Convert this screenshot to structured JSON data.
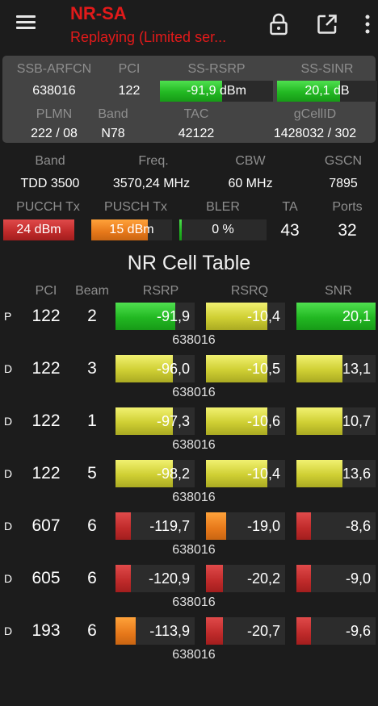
{
  "header": {
    "title": "NR-SA",
    "subtitle": "Replaying (Limited ser..."
  },
  "colors": {
    "accent_red": "#e21a1a",
    "good": "#22b822",
    "fair": "#cfcf33",
    "warn": "#e6781a",
    "bad": "#bf2a2a"
  },
  "toolbar": {
    "icons": [
      "menu-icon",
      "lock-icon",
      "open-external-icon",
      "more-vert-icon"
    ]
  },
  "ssb": {
    "arfcn_label": "SSB-ARFCN",
    "arfcn": "638016",
    "pci_label": "PCI",
    "pci": "122",
    "rsrp_label": "SS-RSRP",
    "rsrp": "-91,9 dBm",
    "rsrp_level": 0.55,
    "sinr_label": "SS-SINR",
    "sinr": "20,1 dB",
    "sinr_level": 0.63,
    "plmn_label": "PLMN",
    "plmn": "222 / 08",
    "band_label": "Band",
    "band": "N78",
    "tac_label": "TAC",
    "tac": "42122",
    "gcellid_label": "gCellID",
    "gcellid": "1428032 / 302"
  },
  "carrier": {
    "band_label": "Band",
    "band": "TDD 3500",
    "freq_label": "Freq.",
    "freq": "3570,24 MHz",
    "cbw_label": "CBW",
    "cbw": "60 MHz",
    "gscn_label": "GSCN",
    "gscn": "7895",
    "pucch_label": "PUCCH Tx",
    "pucch": "24 dBm",
    "pucch_level": 1.0,
    "pusch_label": "PUSCH Tx",
    "pusch": "15 dBm",
    "pusch_level": 0.7,
    "bler_label": "BLER",
    "bler": "0 %",
    "bler_level": 0.03,
    "ta_label": "TA",
    "ta": "43",
    "ports_label": "Ports",
    "ports": "32"
  },
  "cell_table": {
    "title": "NR Cell Table",
    "headers": [
      "PCI",
      "Beam",
      "RSRP",
      "RSRQ",
      "SNR"
    ],
    "rows": [
      {
        "type": "P",
        "pci": "122",
        "beam": "2",
        "arfcn": "638016",
        "rsrp": "-91,9",
        "rsrp_level": 0.75,
        "rsrp_color": "green",
        "rsrq": "-10,4",
        "rsrq_level": 0.78,
        "rsrq_color": "yellow",
        "snr": "20,1",
        "snr_level": 1.0,
        "snr_color": "green"
      },
      {
        "type": "D",
        "pci": "122",
        "beam": "3",
        "arfcn": "638016",
        "rsrp": "-96,0",
        "rsrp_level": 0.72,
        "rsrp_color": "yellow",
        "rsrq": "-10,5",
        "rsrq_level": 0.78,
        "rsrq_color": "yellow",
        "snr": "13,1",
        "snr_level": 0.58,
        "snr_color": "yellow"
      },
      {
        "type": "D",
        "pci": "122",
        "beam": "1",
        "arfcn": "638016",
        "rsrp": "-97,3",
        "rsrp_level": 0.72,
        "rsrp_color": "yellow",
        "rsrq": "-10,6",
        "rsrq_level": 0.78,
        "rsrq_color": "yellow",
        "snr": "10,7",
        "snr_level": 0.58,
        "snr_color": "yellow"
      },
      {
        "type": "D",
        "pci": "122",
        "beam": "5",
        "arfcn": "638016",
        "rsrp": "-98,2",
        "rsrp_level": 0.72,
        "rsrp_color": "yellow",
        "rsrq": "-10,4",
        "rsrq_level": 0.78,
        "rsrq_color": "yellow",
        "snr": "13,6",
        "snr_level": 0.58,
        "snr_color": "yellow"
      },
      {
        "type": "D",
        "pci": "607",
        "beam": "6",
        "arfcn": "638016",
        "rsrp": "-119,7",
        "rsrp_level": 0.19,
        "rsrp_color": "red",
        "rsrq": "-19,0",
        "rsrq_level": 0.25,
        "rsrq_color": "orange",
        "snr": "-8,6",
        "snr_level": 0.18,
        "snr_color": "red"
      },
      {
        "type": "D",
        "pci": "605",
        "beam": "6",
        "arfcn": "638016",
        "rsrp": "-120,9",
        "rsrp_level": 0.19,
        "rsrp_color": "red",
        "rsrq": "-20,2",
        "rsrq_level": 0.21,
        "rsrq_color": "red",
        "snr": "-9,0",
        "snr_level": 0.18,
        "snr_color": "red"
      },
      {
        "type": "D",
        "pci": "193",
        "beam": "6",
        "arfcn": "638016",
        "rsrp": "-113,9",
        "rsrp_level": 0.25,
        "rsrp_color": "orange",
        "rsrq": "-20,7",
        "rsrq_level": 0.21,
        "rsrq_color": "red",
        "snr": "-9,6",
        "snr_level": 0.18,
        "snr_color": "red"
      }
    ]
  }
}
